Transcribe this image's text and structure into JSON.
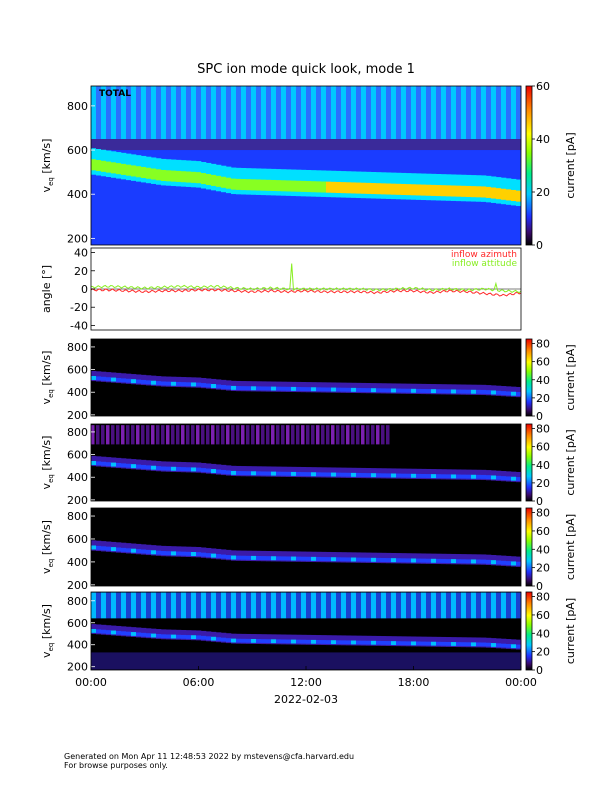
{
  "chart_data": {
    "type": "heatmap",
    "title": "SPC ion mode quick look, mode 1",
    "x_ticks": [
      "00:00",
      "06:00",
      "12:00",
      "18:00",
      "00:00"
    ],
    "x_date": "2022-02-03",
    "panels": [
      {
        "kind": "spectrogram",
        "label": "TOTAL",
        "ylabel_main": "v",
        "ylabel_sub": "eq",
        "ylabel_unit": "[km/s]",
        "ylim": [
          170,
          890
        ],
        "y_ticks": [
          200,
          400,
          600,
          800
        ],
        "colorbar_label": "current [pA]",
        "colorbar_range": [
          0,
          60
        ],
        "colorbar_ticks": [
          0,
          20,
          40,
          60
        ],
        "background": "bright"
      },
      {
        "kind": "line",
        "ylabel": "angle [°]",
        "ylim": [
          -45,
          45
        ],
        "y_ticks": [
          -40,
          -20,
          0,
          20,
          40
        ],
        "series": [
          {
            "name": "inflow azimuth",
            "color": "#ff2a2a",
            "x_hours": [
              0,
              1,
              2,
              3,
              4,
              5,
              6,
              7,
              8,
              9,
              10,
              11,
              12,
              13,
              14,
              15,
              16,
              17,
              18,
              19,
              20,
              21,
              22,
              23,
              24
            ],
            "values": [
              -1,
              -1,
              -2,
              -3,
              -2,
              -2,
              -1,
              -1,
              -2,
              -3,
              -2,
              -3,
              -2,
              -3,
              -3,
              -3,
              -4,
              -2,
              -2,
              -4,
              -2,
              -3,
              -5,
              -7,
              -4
            ]
          },
          {
            "name": "inflow attitude",
            "color": "#88ee22",
            "x_hours": [
              0,
              1,
              2,
              3,
              4,
              5,
              6,
              7,
              8,
              9,
              10,
              11,
              12,
              13,
              14,
              15,
              16,
              17,
              18,
              19,
              20,
              21,
              22,
              23,
              24
            ],
            "values": [
              2,
              3,
              2,
              1,
              2,
              3,
              2,
              3,
              1,
              0,
              1,
              0,
              0,
              0,
              0,
              0,
              -1,
              0,
              1,
              -1,
              0,
              -1,
              0,
              -2,
              -3
            ]
          }
        ],
        "spikes": [
          {
            "series": 1,
            "x_hour": 11.2,
            "value": 28
          },
          {
            "series": 1,
            "x_hour": 22.6,
            "value": 6
          }
        ]
      },
      {
        "kind": "spectrogram",
        "label": "",
        "ylabel_main": "v",
        "ylabel_sub": "eq",
        "ylabel_unit": "[km/s]",
        "ylim": [
          190,
          870
        ],
        "y_ticks": [
          200,
          400,
          600,
          800
        ],
        "colorbar_label": "current [pA]",
        "colorbar_range": [
          0,
          85
        ],
        "colorbar_ticks": [
          0,
          20,
          40,
          60,
          80
        ],
        "background": "dark"
      },
      {
        "kind": "spectrogram",
        "label": "",
        "ylabel_main": "v",
        "ylabel_sub": "eq",
        "ylabel_unit": "[km/s]",
        "ylim": [
          190,
          870
        ],
        "y_ticks": [
          200,
          400,
          600,
          800
        ],
        "colorbar_label": "current [pA]",
        "colorbar_range": [
          0,
          85
        ],
        "colorbar_ticks": [
          0,
          20,
          40,
          60,
          80
        ],
        "background": "dark-purple-top"
      },
      {
        "kind": "spectrogram",
        "label": "",
        "ylabel_main": "v",
        "ylabel_sub": "eq",
        "ylabel_unit": "[km/s]",
        "ylim": [
          190,
          870
        ],
        "y_ticks": [
          200,
          400,
          600,
          800
        ],
        "colorbar_label": "current [pA]",
        "colorbar_range": [
          0,
          85
        ],
        "colorbar_ticks": [
          0,
          20,
          40,
          60,
          80
        ],
        "background": "dark"
      },
      {
        "kind": "spectrogram",
        "label": "",
        "ylabel_main": "v",
        "ylabel_sub": "eq",
        "ylabel_unit": "[km/s]",
        "ylim": [
          170,
          880
        ],
        "y_ticks": [
          200,
          400,
          600,
          800
        ],
        "colorbar_label": "current [pA]",
        "colorbar_range": [
          0,
          85
        ],
        "colorbar_ticks": [
          0,
          20,
          40,
          60,
          80
        ],
        "background": "dark-cyan-top"
      }
    ],
    "beam_speed_km_s": {
      "x_hours": [
        0,
        2,
        4,
        6,
        7,
        8,
        10,
        12,
        14,
        16,
        18,
        20,
        22,
        23,
        24
      ],
      "values": [
        520,
        495,
        470,
        460,
        445,
        430,
        425,
        420,
        415,
        410,
        405,
        400,
        395,
        385,
        375
      ]
    }
  },
  "footer": {
    "line1": "Generated on Mon Apr 11 12:48:53 2022 by mstevens@cfa.harvard.edu",
    "line2": "For browse purposes only."
  }
}
